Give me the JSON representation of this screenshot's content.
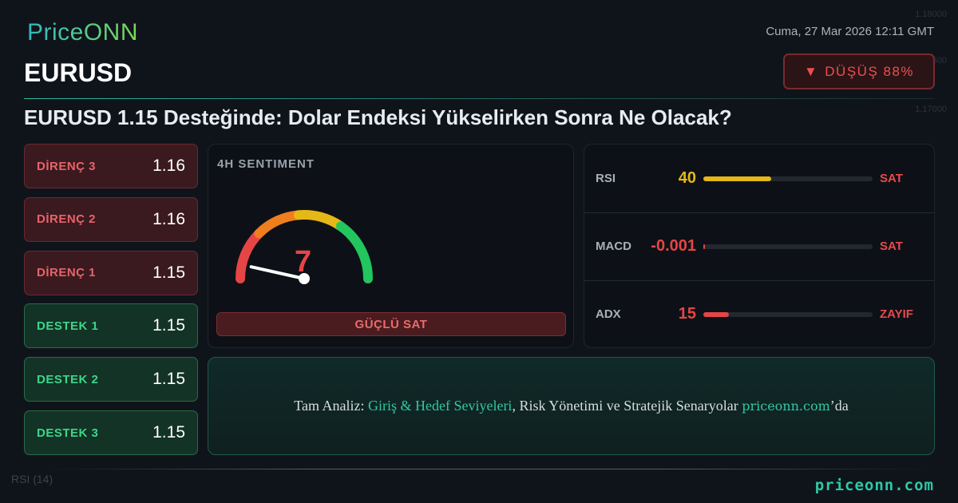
{
  "brand": {
    "logo": "PriceONN",
    "footer_url": "priceonn.com"
  },
  "header": {
    "date": "Cuma, 27 Mar 2026 12:11 GMT",
    "symbol": "EURUSD",
    "badge": {
      "icon": "triangle-down-icon",
      "label": "DÜŞÜŞ 88%",
      "color": "#ef4e4e"
    },
    "headline": "EURUSD 1.15 Desteğinde: Dolar Endeksi Yükselirken Sonra Ne Olacak?"
  },
  "background_chart": {
    "price_ticks": [
      "1.18000",
      "1.17500",
      "1.17000"
    ],
    "indicator_label": "RSI (14)"
  },
  "levels": [
    {
      "name": "DİRENÇ 3",
      "value": "1.16",
      "type": "resistance"
    },
    {
      "name": "DİRENÇ 2",
      "value": "1.16",
      "type": "resistance"
    },
    {
      "name": "DİRENÇ 1",
      "value": "1.15",
      "type": "resistance"
    },
    {
      "name": "DESTEK 1",
      "value": "1.15",
      "type": "support"
    },
    {
      "name": "DESTEK 2",
      "value": "1.15",
      "type": "support"
    },
    {
      "name": "DESTEK 3",
      "value": "1.15",
      "type": "support"
    }
  ],
  "sentiment": {
    "title": "4H SENTIMENT",
    "value": "7",
    "gauge_value": 7,
    "gauge_max": 100,
    "label": "GÜÇLÜ SAT",
    "colors": [
      "#e64545",
      "#f07d1e",
      "#e6b817",
      "#22c55e"
    ]
  },
  "indicators": [
    {
      "name": "RSI",
      "value": "40",
      "fill_pct": 40,
      "signal": "SAT",
      "color": "#e6b817"
    },
    {
      "name": "MACD",
      "value": "-0.001",
      "fill_pct": 0,
      "signal": "SAT",
      "color": "#e64545"
    },
    {
      "name": "ADX",
      "value": "15",
      "fill_pct": 15,
      "signal": "ZAYIF",
      "color": "#e64545"
    }
  ],
  "cta": {
    "prefix": "Tam Analiz: ",
    "highlight": "Giriş & Hedef Seviyeleri",
    "middle": ", Risk Yönetimi ve Stratejik Senaryolar ",
    "link": "priceonn.com",
    "suffix": "’da"
  }
}
